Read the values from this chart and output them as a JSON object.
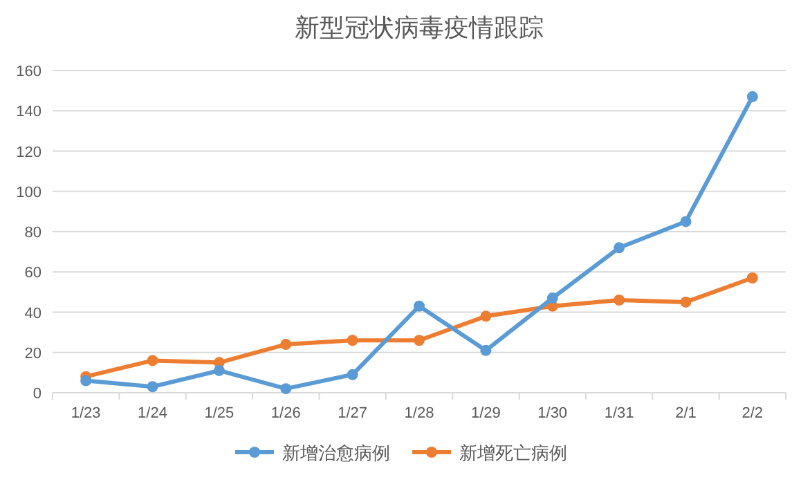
{
  "chart_data": {
    "type": "line",
    "title": "新型冠状病毒疫情跟踪",
    "categories": [
      "1/23",
      "1/24",
      "1/25",
      "1/26",
      "1/27",
      "1/28",
      "1/29",
      "1/30",
      "1/31",
      "2/1",
      "2/2"
    ],
    "series": [
      {
        "name": "新增治愈病例",
        "color": "#5b9bd5",
        "values": [
          6,
          3,
          11,
          2,
          9,
          43,
          21,
          47,
          72,
          85,
          147
        ]
      },
      {
        "name": "新增死亡病例",
        "color": "#ed7d31",
        "values": [
          8,
          16,
          15,
          24,
          26,
          26,
          38,
          43,
          46,
          45,
          57
        ]
      }
    ],
    "ylim": [
      0,
      160
    ],
    "yticks": [
      0,
      20,
      40,
      60,
      80,
      100,
      120,
      140,
      160
    ],
    "grid": "y",
    "legend": "bottom",
    "marker": "circle",
    "line_style": "solid"
  }
}
